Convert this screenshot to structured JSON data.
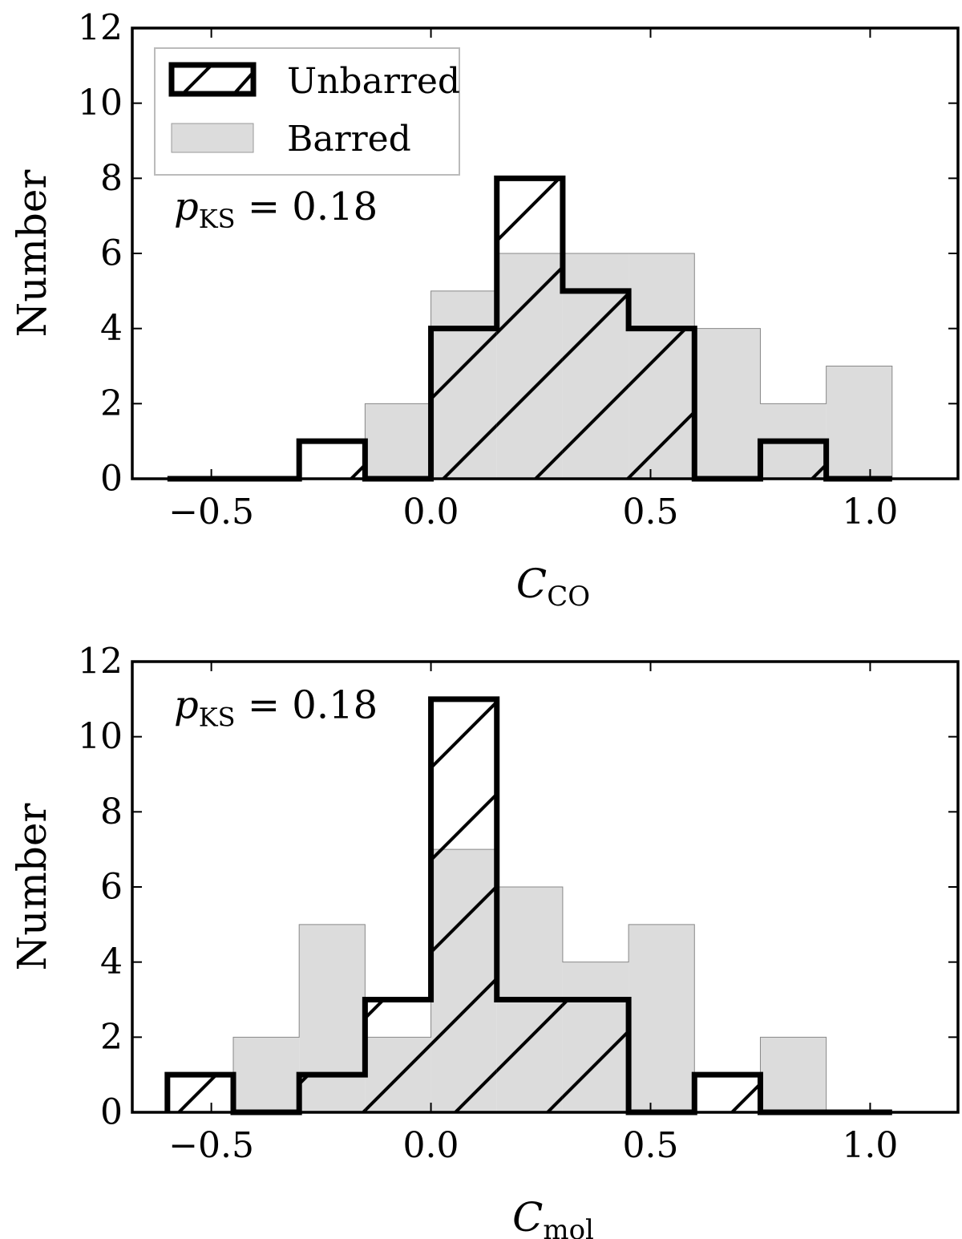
{
  "chart_data": [
    {
      "type": "histogram",
      "xlabel": "C",
      "xlabel_sub": "CO",
      "ylabel": "Number",
      "xlim": [
        -0.68,
        1.2
      ],
      "ylim": [
        0,
        12
      ],
      "xticks": [
        -0.5,
        0.0,
        0.5,
        1.0
      ],
      "xtick_labels": [
        "−0.5",
        "0.0",
        "0.5",
        "1.0"
      ],
      "yticks": [
        0,
        2,
        4,
        6,
        8,
        10,
        12
      ],
      "ytick_labels": [
        "0",
        "2",
        "4",
        "6",
        "8",
        "10",
        "12"
      ],
      "bin_edges": [
        -0.6,
        -0.45,
        -0.3,
        -0.15,
        0.0,
        0.15,
        0.3,
        0.45,
        0.6,
        0.75,
        0.9,
        1.05
      ],
      "series": [
        {
          "name": "Barred",
          "style": "filled",
          "color": "#dcdcdc",
          "values": [
            0,
            0,
            0,
            2,
            5,
            6,
            6,
            6,
            4,
            2,
            3
          ]
        },
        {
          "name": "Unbarred",
          "style": "hatched-step",
          "color": "#000000",
          "values": [
            0,
            0,
            1,
            0,
            4,
            8,
            5,
            4,
            0,
            1,
            0
          ]
        }
      ],
      "legend": {
        "position": "upper-left",
        "entries": [
          "Unbarred",
          "Barred"
        ]
      },
      "annotation": {
        "symbol": "p",
        "sub": "KS",
        "text": " = 0.18"
      }
    },
    {
      "type": "histogram",
      "xlabel": "C",
      "xlabel_sub": "mol",
      "ylabel": "Number",
      "xlim": [
        -0.68,
        1.2
      ],
      "ylim": [
        0,
        12
      ],
      "xticks": [
        -0.5,
        0.0,
        0.5,
        1.0
      ],
      "xtick_labels": [
        "−0.5",
        "0.0",
        "0.5",
        "1.0"
      ],
      "yticks": [
        0,
        2,
        4,
        6,
        8,
        10,
        12
      ],
      "ytick_labels": [
        "0",
        "2",
        "4",
        "6",
        "8",
        "10",
        "12"
      ],
      "bin_edges": [
        -0.6,
        -0.45,
        -0.3,
        -0.15,
        0.0,
        0.15,
        0.3,
        0.45,
        0.6,
        0.75,
        0.9,
        1.05
      ],
      "series": [
        {
          "name": "Barred",
          "style": "filled",
          "color": "#dcdcdc",
          "values": [
            0,
            2,
            5,
            2,
            7,
            6,
            4,
            5,
            0,
            2,
            0
          ]
        },
        {
          "name": "Unbarred",
          "style": "hatched-step",
          "color": "#000000",
          "values": [
            1,
            0,
            1,
            3,
            11,
            3,
            3,
            0,
            1,
            0,
            0
          ]
        }
      ],
      "legend": null,
      "annotation": {
        "symbol": "p",
        "sub": "KS",
        "text": " = 0.18"
      }
    }
  ]
}
